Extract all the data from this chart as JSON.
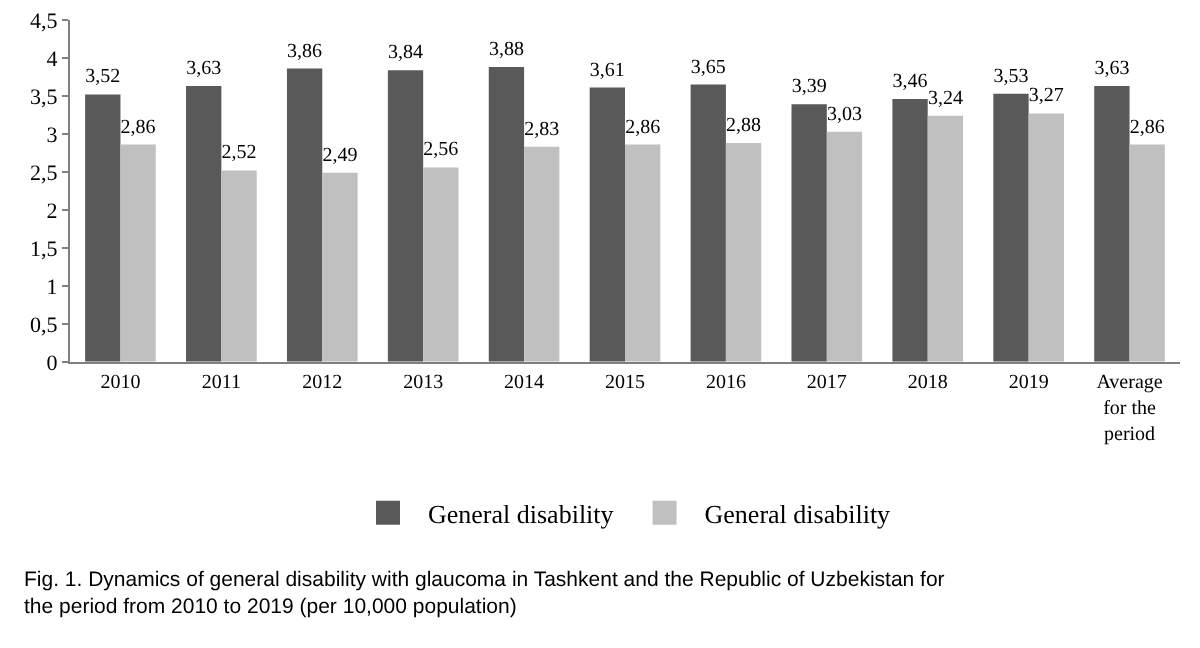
{
  "chart_data": {
    "type": "bar",
    "categories": [
      "2010",
      "2011",
      "2012",
      "2013",
      "2014",
      "2015",
      "2016",
      "2017",
      "2018",
      "2019",
      "Average for the period"
    ],
    "series": [
      {
        "name": "General disability",
        "color": "#595959",
        "values": [
          3.52,
          3.63,
          3.86,
          3.84,
          3.88,
          3.61,
          3.65,
          3.39,
          3.46,
          3.53,
          3.63
        ],
        "value_labels": [
          "3,52",
          "3,63",
          "3,86",
          "3,84",
          "3,88",
          "3,61",
          "3,65",
          "3,39",
          "3,46",
          "3,53",
          "3,63"
        ]
      },
      {
        "name": "General disability",
        "color": "#c0c0c0",
        "values": [
          2.86,
          2.52,
          2.49,
          2.56,
          2.83,
          2.86,
          2.88,
          3.03,
          3.24,
          3.27,
          2.86
        ],
        "value_labels": [
          "2,86",
          "2,52",
          "2,49",
          "2,56",
          "2,83",
          "2,86",
          "2,88",
          "3,03",
          "3,24",
          "3,27",
          "2,86"
        ]
      }
    ],
    "ylim": [
      0,
      4.5
    ],
    "yticks": [
      0,
      {
        "value": 0.5,
        "label": "0,5"
      },
      1,
      {
        "value": 1.5,
        "label": "1,5"
      },
      2,
      {
        "value": 2.5,
        "label": "2,5"
      },
      3,
      {
        "value": 3.5,
        "label": "3,5"
      },
      4,
      {
        "value": 4.5,
        "label": "4,5"
      }
    ],
    "grid": false,
    "legend": "bottom",
    "annotations": [
      "Fig. 1. Dynamics of general disability with glaucoma in Tashkent and the Republic of Uzbekistan for the period from 2010 to 2019 (per 10,000 population)"
    ]
  }
}
